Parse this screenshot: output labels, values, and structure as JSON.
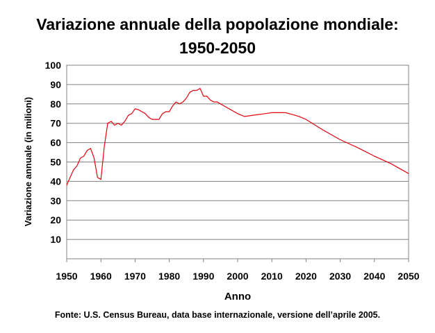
{
  "chart_data": {
    "type": "line",
    "title": "Variazione annuale della popolazione mondiale:",
    "subtitle": "1950-2050",
    "xlabel": "Anno",
    "ylabel": "Variazione annuale (in milioni)",
    "xlim": [
      1950,
      2050
    ],
    "ylim": [
      0,
      100
    ],
    "x_ticks": [
      1950,
      1960,
      1970,
      1980,
      1990,
      2000,
      2010,
      2020,
      2030,
      2040,
      2050
    ],
    "y_ticks": [
      10,
      20,
      30,
      40,
      50,
      60,
      70,
      80,
      90,
      100
    ],
    "grid": "horizontal",
    "line_color": "#e8000b",
    "series": [
      {
        "x": [
          1950,
          1951,
          1952,
          1953,
          1954,
          1955,
          1956,
          1957,
          1958,
          1959,
          1960,
          1961,
          1962,
          1963,
          1964,
          1965,
          1966,
          1967,
          1968,
          1969,
          1970,
          1971,
          1972,
          1973,
          1974,
          1975,
          1976,
          1977,
          1978,
          1979,
          1980,
          1981,
          1982,
          1983,
          1984,
          1985,
          1986,
          1987,
          1988,
          1989,
          1990,
          1991,
          1992,
          1993,
          1994,
          1995,
          1996,
          1997,
          1998,
          1999,
          2000,
          2002,
          2004,
          2006,
          2008,
          2010,
          2012,
          2014,
          2016,
          2018,
          2020,
          2025,
          2030,
          2035,
          2040,
          2045,
          2050
        ],
        "values": [
          38,
          42,
          46,
          48,
          52,
          53,
          56,
          57,
          52,
          42,
          41,
          58,
          70,
          71,
          69,
          70,
          69,
          71,
          74,
          75,
          77.5,
          77,
          76,
          75,
          73,
          72,
          72,
          72,
          75,
          76,
          76,
          79,
          81,
          80,
          81,
          83,
          86,
          87,
          87,
          88,
          84,
          84,
          82,
          81,
          81,
          80,
          79,
          78,
          77,
          76,
          75,
          73.5,
          74,
          74.5,
          75,
          75.5,
          75.5,
          75.5,
          74.5,
          73.5,
          72,
          66.5,
          61.5,
          57.5,
          53,
          49,
          44
        ]
      }
    ],
    "source": "Fonte: U.S. Census Bureau, data base internazionale, versione dell’aprile 2005."
  }
}
